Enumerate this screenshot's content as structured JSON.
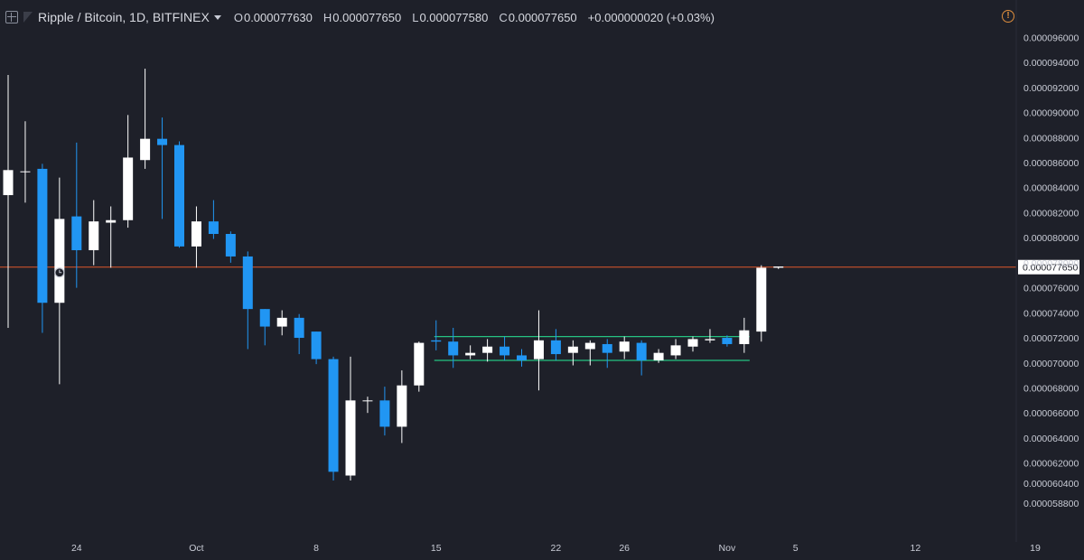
{
  "header": {
    "title": "Ripple / Bitcoin, 1D, BITFINEX",
    "open_label": "O",
    "open": "0.000077630",
    "high_label": "H",
    "high": "0.000077650",
    "low_label": "L",
    "low": "0.000077580",
    "close_label": "C",
    "close": "0.000077650",
    "change": "+0.000000020 (+0.03%)"
  },
  "icons": {
    "expand": "expand-icon",
    "symbol": "symbol-logo-icon",
    "dropdown": "chevron-down-icon",
    "alert": "alert-icon",
    "alert_glyph": "!",
    "clock": "clock-icon"
  },
  "colors": {
    "background": "#1e2029",
    "up": "#ffffff",
    "down": "#2196f3",
    "price_line": "#e0592a",
    "channel": "#26c281",
    "axis_text": "#c9ccd6"
  },
  "chart_data": {
    "type": "candlestick",
    "symbol": "XRP/BTC",
    "interval": "1D",
    "exchange": "BITFINEX",
    "ylim": [
      5.75e-05,
      9.74e-05
    ],
    "y_ticks": [
      "0.000096000",
      "0.000094000",
      "0.000092000",
      "0.000090000",
      "0.000088000",
      "0.000086000",
      "0.000084000",
      "0.000082000",
      "0.000080000",
      "0.000078000",
      "0.000076000",
      "0.000074000",
      "0.000072000",
      "0.000070000",
      "0.000068000",
      "0.000066000",
      "0.000064000",
      "0.000062000",
      "0.000060400",
      "0.000058800"
    ],
    "x_ticks": [
      {
        "label": "24",
        "date": "2018-09-24"
      },
      {
        "label": "Oct",
        "date": "2018-10-01"
      },
      {
        "label": "8",
        "date": "2018-10-08"
      },
      {
        "label": "15",
        "date": "2018-10-15"
      },
      {
        "label": "22",
        "date": "2018-10-22"
      },
      {
        "label": "26",
        "date": "2018-10-26"
      },
      {
        "label": "Nov",
        "date": "2018-11-01"
      },
      {
        "label": "5",
        "date": "2018-11-05"
      },
      {
        "label": "12",
        "date": "2018-11-12"
      },
      {
        "label": "19",
        "date": "2018-11-19"
      }
    ],
    "last_price": "0.000077650",
    "last_price_value": 7.765e-05,
    "candles": [
      {
        "date": "2018-09-20",
        "o": 8.34e-05,
        "h": 9.3e-05,
        "l": 7.28e-05,
        "c": 8.54e-05
      },
      {
        "date": "2018-09-21",
        "o": 8.53e-05,
        "h": 8.93e-05,
        "l": 8.28e-05,
        "c": 8.53e-05
      },
      {
        "date": "2018-09-22",
        "o": 8.55e-05,
        "h": 8.59e-05,
        "l": 7.24e-05,
        "c": 7.48e-05
      },
      {
        "date": "2018-09-23",
        "o": 7.48e-05,
        "h": 8.48e-05,
        "l": 6.83e-05,
        "c": 8.15e-05
      },
      {
        "date": "2018-09-24",
        "o": 8.17e-05,
        "h": 8.76e-05,
        "l": 7.6e-05,
        "c": 7.9e-05
      },
      {
        "date": "2018-09-25",
        "o": 7.9e-05,
        "h": 8.3e-05,
        "l": 7.78e-05,
        "c": 8.13e-05
      },
      {
        "date": "2018-09-26",
        "o": 8.12e-05,
        "h": 8.25e-05,
        "l": 7.76e-05,
        "c": 8.14e-05
      },
      {
        "date": "2018-09-27",
        "o": 8.14e-05,
        "h": 8.98e-05,
        "l": 8.08e-05,
        "c": 8.64e-05
      },
      {
        "date": "2018-09-28",
        "o": 8.62e-05,
        "h": 9.35e-05,
        "l": 8.55e-05,
        "c": 8.79e-05
      },
      {
        "date": "2018-09-29",
        "o": 8.79e-05,
        "h": 8.96e-05,
        "l": 8.15e-05,
        "c": 8.74e-05
      },
      {
        "date": "2018-09-30",
        "o": 8.74e-05,
        "h": 8.77e-05,
        "l": 7.92e-05,
        "c": 7.93e-05
      },
      {
        "date": "2018-10-01",
        "o": 7.93e-05,
        "h": 8.25e-05,
        "l": 7.76e-05,
        "c": 8.13e-05
      },
      {
        "date": "2018-10-02",
        "o": 8.13e-05,
        "h": 8.3e-05,
        "l": 7.99e-05,
        "c": 8.03e-05
      },
      {
        "date": "2018-10-03",
        "o": 8.03e-05,
        "h": 8.05e-05,
        "l": 7.8e-05,
        "c": 7.85e-05
      },
      {
        "date": "2018-10-04",
        "o": 7.85e-05,
        "h": 7.89e-05,
        "l": 7.11e-05,
        "c": 7.43e-05
      },
      {
        "date": "2018-10-05",
        "o": 7.43e-05,
        "h": 7.43e-05,
        "l": 7.14e-05,
        "c": 7.29e-05
      },
      {
        "date": "2018-10-06",
        "o": 7.29e-05,
        "h": 7.42e-05,
        "l": 7.22e-05,
        "c": 7.36e-05
      },
      {
        "date": "2018-10-07",
        "o": 7.36e-05,
        "h": 7.39e-05,
        "l": 7.07e-05,
        "c": 7.2e-05
      },
      {
        "date": "2018-10-08",
        "o": 7.25e-05,
        "h": 7.25e-05,
        "l": 6.99e-05,
        "c": 7.03e-05
      },
      {
        "date": "2018-10-09",
        "o": 7.03e-05,
        "h": 7.05e-05,
        "l": 6.06e-05,
        "c": 6.13e-05
      },
      {
        "date": "2018-10-10",
        "o": 6.1e-05,
        "h": 7.05e-05,
        "l": 6.06e-05,
        "c": 6.7e-05
      },
      {
        "date": "2018-10-11",
        "o": 6.7e-05,
        "h": 6.73e-05,
        "l": 6.6e-05,
        "c": 6.7e-05
      },
      {
        "date": "2018-10-12",
        "o": 6.7e-05,
        "h": 6.81e-05,
        "l": 6.42e-05,
        "c": 6.49e-05
      },
      {
        "date": "2018-10-13",
        "o": 6.49e-05,
        "h": 6.94e-05,
        "l": 6.36e-05,
        "c": 6.82e-05
      },
      {
        "date": "2018-10-14",
        "o": 6.82e-05,
        "h": 7.17e-05,
        "l": 6.77e-05,
        "c": 7.16e-05
      },
      {
        "date": "2018-10-15",
        "o": 7.18e-05,
        "h": 7.34e-05,
        "l": 7.1e-05,
        "c": 7.17e-05
      },
      {
        "date": "2018-10-16",
        "o": 7.17e-05,
        "h": 7.28e-05,
        "l": 6.96e-05,
        "c": 7.06e-05
      },
      {
        "date": "2018-10-17",
        "o": 7.06e-05,
        "h": 7.14e-05,
        "l": 7.03e-05,
        "c": 7.08e-05
      },
      {
        "date": "2018-10-18",
        "o": 7.08e-05,
        "h": 7.19e-05,
        "l": 7.01e-05,
        "c": 7.13e-05
      },
      {
        "date": "2018-10-19",
        "o": 7.13e-05,
        "h": 7.21e-05,
        "l": 7.02e-05,
        "c": 7.06e-05
      },
      {
        "date": "2018-10-20",
        "o": 7.06e-05,
        "h": 7.11e-05,
        "l": 6.97e-05,
        "c": 7.02e-05
      },
      {
        "date": "2018-10-21",
        "o": 7.03e-05,
        "h": 7.42e-05,
        "l": 6.78e-05,
        "c": 7.18e-05
      },
      {
        "date": "2018-10-22",
        "o": 7.18e-05,
        "h": 7.27e-05,
        "l": 7.02e-05,
        "c": 7.07e-05
      },
      {
        "date": "2018-10-23",
        "o": 7.08e-05,
        "h": 7.18e-05,
        "l": 6.98e-05,
        "c": 7.13e-05
      },
      {
        "date": "2018-10-24",
        "o": 7.11e-05,
        "h": 7.18e-05,
        "l": 6.98e-05,
        "c": 7.16e-05
      },
      {
        "date": "2018-10-25",
        "o": 7.15e-05,
        "h": 7.19e-05,
        "l": 6.96e-05,
        "c": 7.08e-05
      },
      {
        "date": "2018-10-26",
        "o": 7.09e-05,
        "h": 7.21e-05,
        "l": 7.03e-05,
        "c": 7.17e-05
      },
      {
        "date": "2018-10-27",
        "o": 7.16e-05,
        "h": 7.18e-05,
        "l": 6.9e-05,
        "c": 7.02e-05
      },
      {
        "date": "2018-10-28",
        "o": 7.02e-05,
        "h": 7.11e-05,
        "l": 7e-05,
        "c": 7.08e-05
      },
      {
        "date": "2018-10-29",
        "o": 7.06e-05,
        "h": 7.19e-05,
        "l": 7.03e-05,
        "c": 7.14e-05
      },
      {
        "date": "2018-10-30",
        "o": 7.13e-05,
        "h": 7.21e-05,
        "l": 7.09e-05,
        "c": 7.19e-05
      },
      {
        "date": "2018-10-31",
        "o": 7.18e-05,
        "h": 7.27e-05,
        "l": 7.16e-05,
        "c": 7.19e-05
      },
      {
        "date": "2018-11-01",
        "o": 7.2e-05,
        "h": 7.22e-05,
        "l": 7.13e-05,
        "c": 7.15e-05
      },
      {
        "date": "2018-11-02",
        "o": 7.15e-05,
        "h": 7.36e-05,
        "l": 7.08e-05,
        "c": 7.26e-05
      },
      {
        "date": "2018-11-03",
        "o": 7.25e-05,
        "h": 7.78e-05,
        "l": 7.17e-05,
        "c": 7.76e-05
      },
      {
        "date": "2018-11-04",
        "o": 7.76e-05,
        "h": 7.77e-05,
        "l": 7.75e-05,
        "c": 7.77e-05
      }
    ],
    "clock_marker_date": "2018-09-23",
    "channel": {
      "upper": 7.21e-05,
      "lower": 7.02e-05,
      "start_date": "2018-10-15",
      "end_date": "2018-11-02"
    }
  }
}
